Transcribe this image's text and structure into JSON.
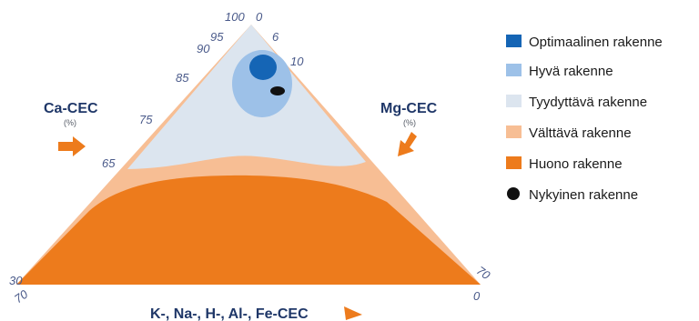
{
  "axes": {
    "ca": {
      "title": "Ca-CEC",
      "unit": "(%)"
    },
    "mg": {
      "title": "Mg-CEC",
      "unit": "(%)"
    },
    "base": {
      "title": "K-, Na-, H-, Al-, Fe-CEC"
    }
  },
  "ticks": {
    "left_edge": [
      "100",
      "95",
      "90",
      "85",
      "75",
      "65"
    ],
    "top_right": [
      "0",
      "6",
      "10"
    ],
    "bottom_left": [
      "30",
      "70"
    ],
    "bottom_right": [
      "70",
      "0"
    ]
  },
  "legend": [
    {
      "label": "Optimaalinen rakenne",
      "color": "#1565b5",
      "shape": "square"
    },
    {
      "label": "Hyvä rakenne",
      "color": "#9dc1e8",
      "shape": "square"
    },
    {
      "label": "Tyydyttävä rakenne",
      "color": "#dce5ef",
      "shape": "square"
    },
    {
      "label": "Välttävä rakenne",
      "color": "#f7be94",
      "shape": "square"
    },
    {
      "label": "Huono rakenne",
      "color": "#ed7b1c",
      "shape": "square"
    },
    {
      "label": "Nykyinen rakenne",
      "color": "#111111",
      "shape": "circle"
    }
  ],
  "colors": {
    "arrow": "#ed7b1c",
    "outline": "#f7be94"
  }
}
